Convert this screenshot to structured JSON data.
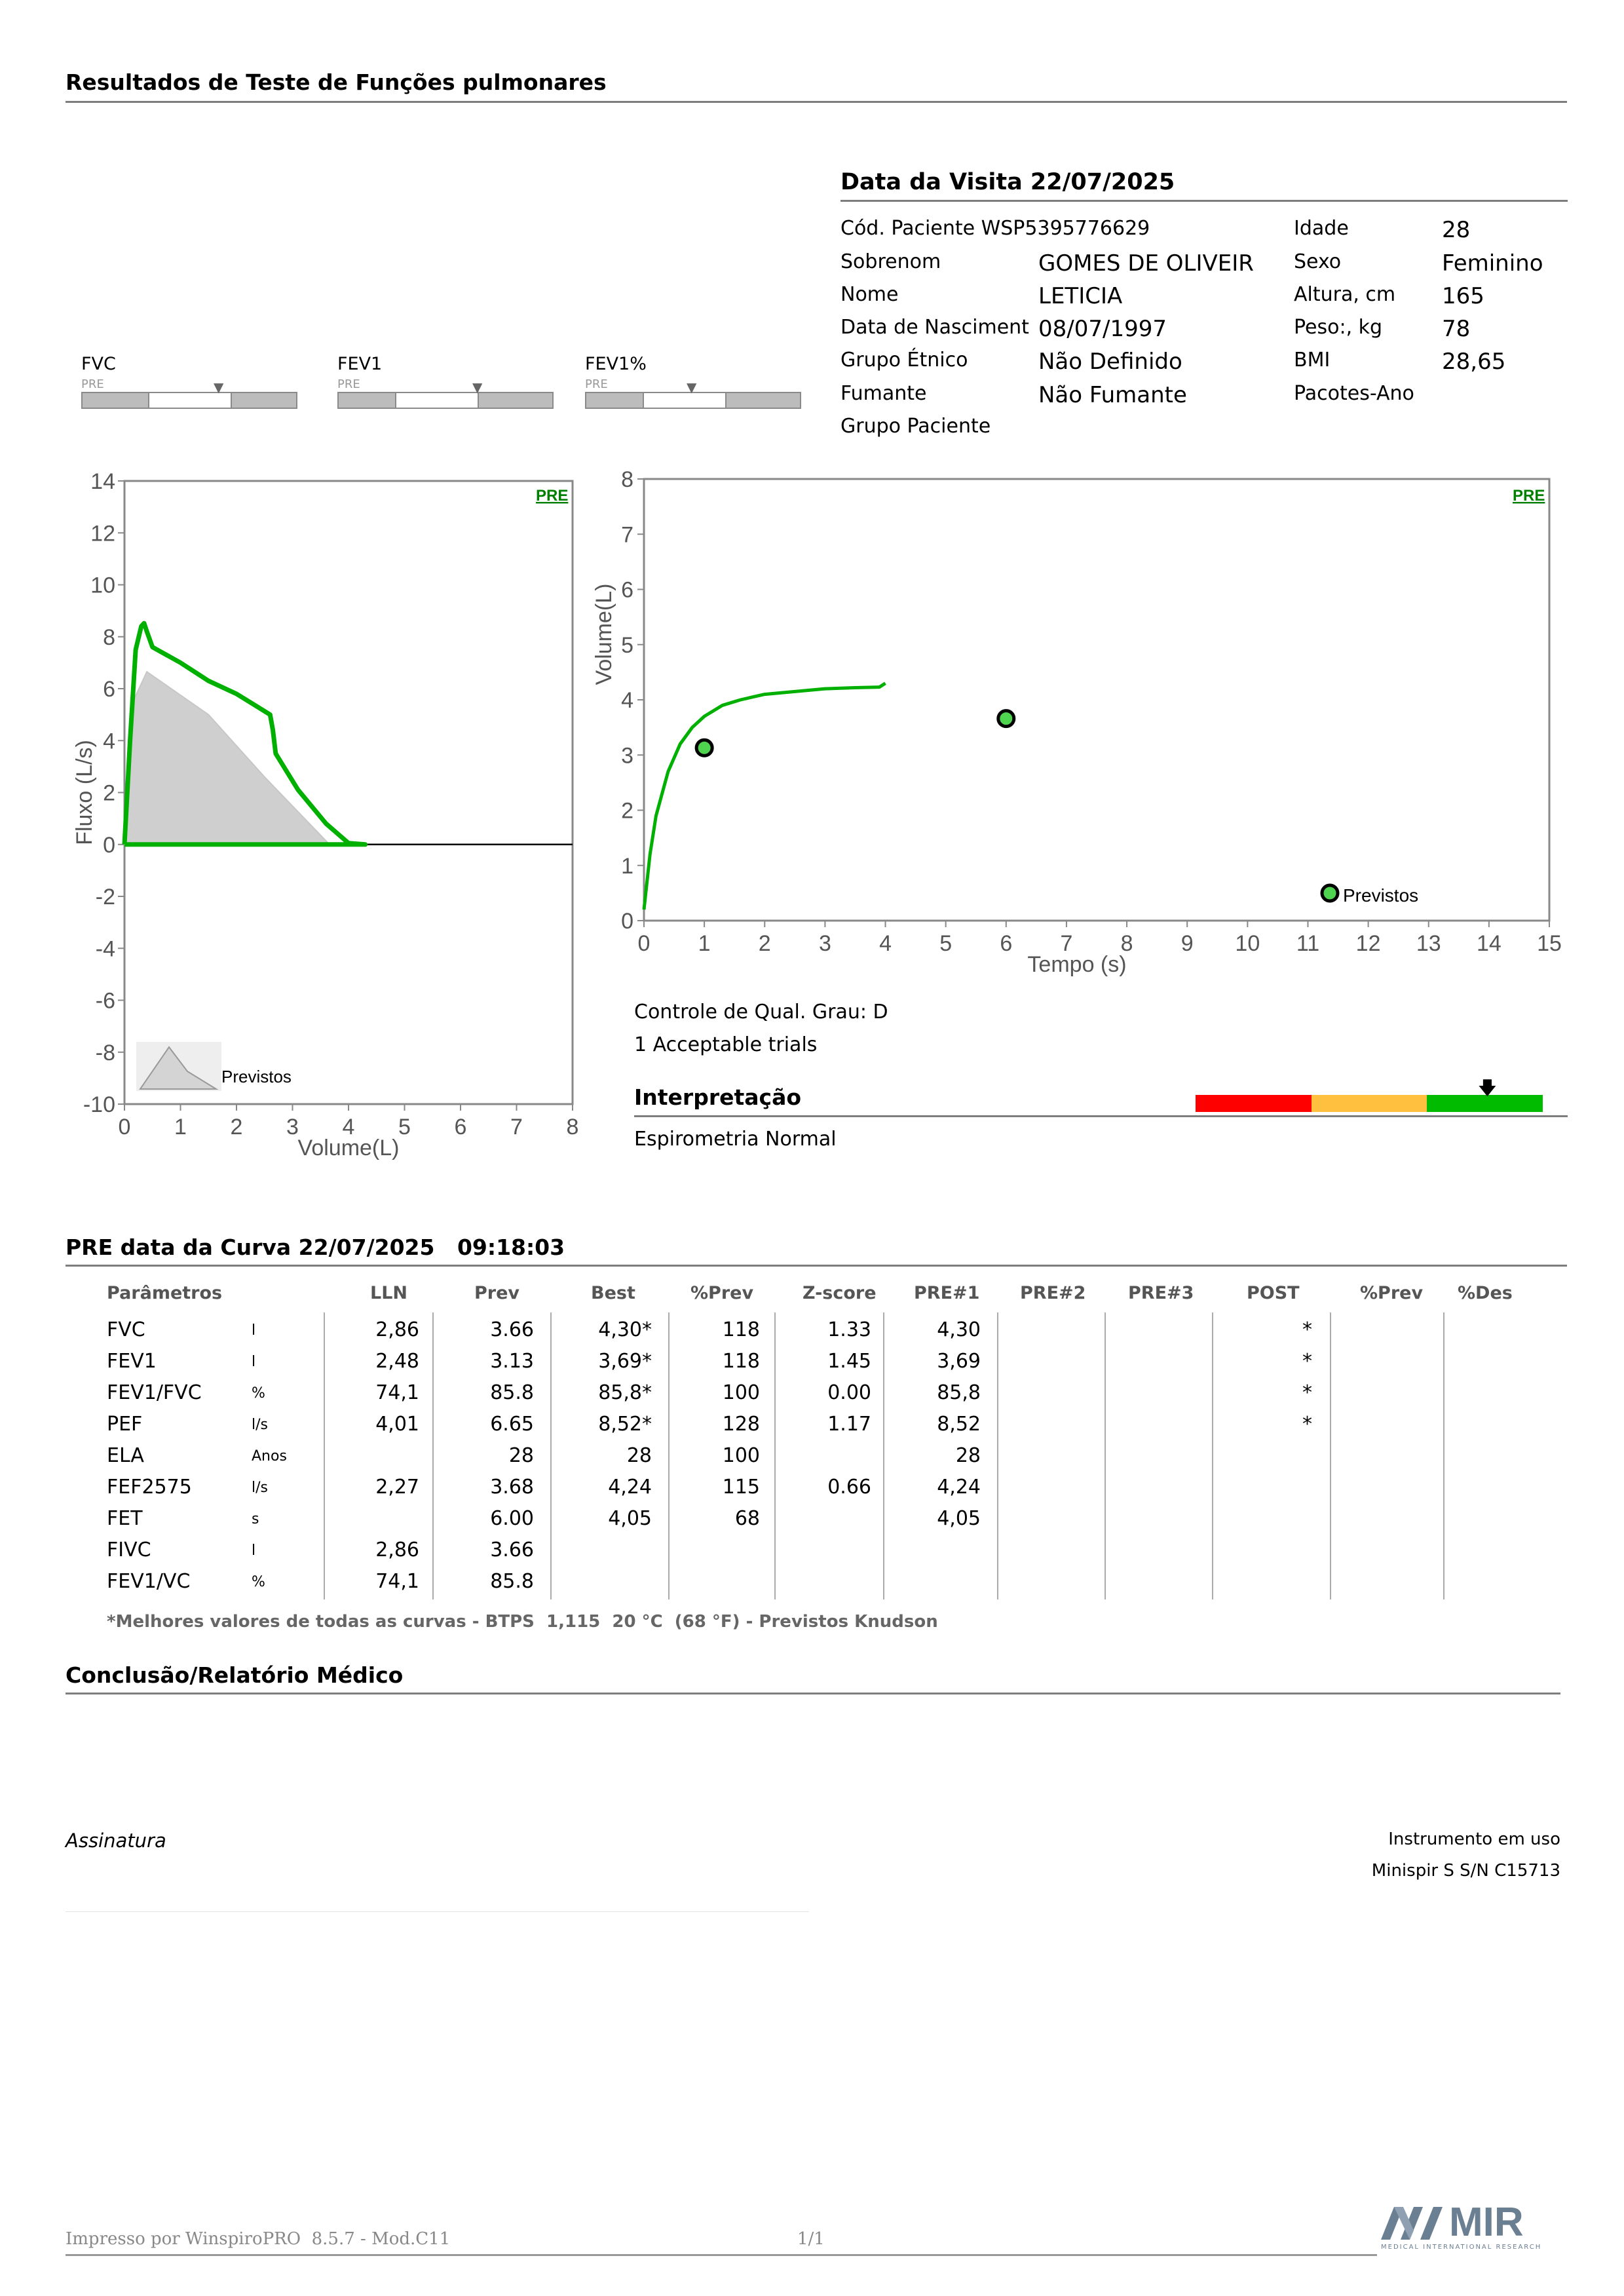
{
  "report": {
    "title": "Resultados de Teste de Funções pulmonares",
    "visit_title": "Data da Visita 22/07/2025"
  },
  "patient": {
    "left": [
      {
        "label": "Cód. Paciente WSP5395776629",
        "value": ""
      },
      {
        "label": "Sobrenom",
        "value": "GOMES DE OLIVEIR"
      },
      {
        "label": "Nome",
        "value": "LETICIA"
      },
      {
        "label": "Data de Nasciment",
        "value": "08/07/1997"
      },
      {
        "label": "Grupo Étnico",
        "value": "Não Definido"
      },
      {
        "label": "Fumante",
        "value": "Não Fumante"
      },
      {
        "label": "Grupo Paciente",
        "value": ""
      }
    ],
    "right": [
      {
        "label": "Idade",
        "value": "28"
      },
      {
        "label": "Sexo",
        "value": "Feminino"
      },
      {
        "label": "Altura, cm",
        "value": "165"
      },
      {
        "label": "Peso:, kg",
        "value": "78"
      },
      {
        "label": "BMI",
        "value": "28,65"
      },
      {
        "label": "Pacotes-Ano",
        "value": ""
      }
    ]
  },
  "indicators": [
    {
      "name": "FVC",
      "sub": "PRE"
    },
    {
      "name": "FEV1",
      "sub": "PRE"
    },
    {
      "name": "FEV1%",
      "sub": "PRE"
    }
  ],
  "chart_data": [
    {
      "type": "line",
      "subtype": "flow-volume",
      "tag": "PRE",
      "xlabel": "Volume(L)",
      "ylabel": "Fluxo (L/s)",
      "xlim": [
        0,
        8
      ],
      "ylim": [
        -10,
        14
      ],
      "x_ticks": [
        "0",
        "1",
        "2",
        "3",
        "4",
        "5",
        "6",
        "7",
        "8"
      ],
      "y_ticks": [
        "14",
        "12",
        "10",
        "8",
        "6",
        "4",
        "2",
        "0",
        "-2",
        "-4",
        "-6",
        "-8",
        "-10"
      ],
      "legend": "Previstos",
      "predicted": {
        "name": "Previstos",
        "x": [
          0,
          0.15,
          0.4,
          1.5,
          2.5,
          3.66
        ],
        "y": [
          0,
          5.5,
          6.65,
          5.0,
          2.6,
          0
        ]
      },
      "series": [
        {
          "x": [
            0,
            0.1,
            0.2,
            0.3,
            0.35,
            0.4,
            0.5,
            1.0,
            1.5,
            2.0,
            2.6,
            2.65,
            2.7,
            3.1,
            3.6,
            4.0,
            4.3
          ],
          "y": [
            0,
            4.0,
            7.5,
            8.4,
            8.52,
            8.2,
            7.6,
            7.0,
            6.3,
            5.8,
            5.0,
            4.4,
            3.5,
            2.1,
            0.8,
            0.05,
            0
          ]
        }
      ]
    },
    {
      "type": "line",
      "subtype": "volume-time",
      "tag": "PRE",
      "xlabel": "Tempo (s)",
      "ylabel": "Volume(L)",
      "xlim": [
        0,
        15
      ],
      "ylim": [
        0,
        8
      ],
      "x_ticks": [
        "0",
        "1",
        "2",
        "3",
        "4",
        "5",
        "6",
        "7",
        "8",
        "9",
        "10",
        "11",
        "12",
        "13",
        "14",
        "15"
      ],
      "y_ticks": [
        "8",
        "7",
        "6",
        "5",
        "4",
        "3",
        "2",
        "1",
        "0"
      ],
      "legend": "Previstos",
      "predicted_points": [
        {
          "x": 1.0,
          "y": 3.13
        },
        {
          "x": 6.0,
          "y": 3.66
        }
      ],
      "series": [
        {
          "x": [
            0,
            0.1,
            0.2,
            0.4,
            0.6,
            0.8,
            1.0,
            1.3,
            1.6,
            2.0,
            2.5,
            3.0,
            3.5,
            3.9,
            4.0
          ],
          "y": [
            0.2,
            1.2,
            1.9,
            2.7,
            3.2,
            3.5,
            3.7,
            3.9,
            4.0,
            4.1,
            4.15,
            4.2,
            4.22,
            4.23,
            4.3
          ]
        }
      ]
    }
  ],
  "quality": {
    "grade": "Controle de Qual. Grau: D",
    "trials": "1 Acceptable trials"
  },
  "interpretation": {
    "title": "Interpretação",
    "text": "Espirometria Normal",
    "colors": [
      "#ff0000",
      "#ffc040",
      "#00bb00"
    ]
  },
  "curve": {
    "title": "PRE data da Curva 22/07/2025   09:18:03",
    "headers": [
      "Parâmetros",
      "LLN",
      "Prev",
      "Best",
      "%Prev",
      "Z-score",
      "PRE#1",
      "PRE#2",
      "PRE#3",
      "POST",
      "%Prev",
      "%Des"
    ],
    "rows": [
      {
        "param": "FVC",
        "unit": "l",
        "lln": "2,86",
        "prev": "3.66",
        "best": "4,30*",
        "pprev": "118",
        "z": "1.33",
        "pre1": "4,30",
        "post": "*"
      },
      {
        "param": "FEV1",
        "unit": "l",
        "lln": "2,48",
        "prev": "3.13",
        "best": "3,69*",
        "pprev": "118",
        "z": "1.45",
        "pre1": "3,69",
        "post": "*"
      },
      {
        "param": "FEV1/FVC",
        "unit": "%",
        "lln": "74,1",
        "prev": "85.8",
        "best": "85,8*",
        "pprev": "100",
        "z": "0.00",
        "pre1": "85,8",
        "post": "*"
      },
      {
        "param": "PEF",
        "unit": "l/s",
        "lln": "4,01",
        "prev": "6.65",
        "best": "8,52*",
        "pprev": "128",
        "z": "1.17",
        "pre1": "8,52",
        "post": "*"
      },
      {
        "param": "ELA",
        "unit": "Anos",
        "lln": "",
        "prev": "28",
        "best": "28",
        "pprev": "100",
        "z": "",
        "pre1": "28",
        "post": ""
      },
      {
        "param": "FEF2575",
        "unit": "l/s",
        "lln": "2,27",
        "prev": "3.68",
        "best": "4,24",
        "pprev": "115",
        "z": "0.66",
        "pre1": "4,24",
        "post": ""
      },
      {
        "param": "FET",
        "unit": "s",
        "lln": "",
        "prev": "6.00",
        "best": "4,05",
        "pprev": "68",
        "z": "",
        "pre1": "4,05",
        "post": ""
      },
      {
        "param": "FIVC",
        "unit": "l",
        "lln": "2,86",
        "prev": "3.66",
        "best": "",
        "pprev": "",
        "z": "",
        "pre1": "",
        "post": ""
      },
      {
        "param": "FEV1/VC",
        "unit": "%",
        "lln": "74,1",
        "prev": "85.8",
        "best": "",
        "pprev": "",
        "z": "",
        "pre1": "",
        "post": ""
      }
    ],
    "footnote": "*Melhores valores de todas as curvas - BTPS  1,115  20 °C  (68 °F) - Previstos Knudson"
  },
  "conclusion": {
    "title": "Conclusão/Relatório Médico",
    "signature": "Assinatura",
    "instrument_label": "Instrumento em uso",
    "instrument": "Minispir S S/N C15713"
  },
  "footer": {
    "printed": "Impresso por WinspiroPRO  8.5.7 - Mod.C11",
    "page": "1/1",
    "logo_text": "MIR",
    "logo_sub": "MEDICAL INTERNATIONAL RESEARCH"
  }
}
